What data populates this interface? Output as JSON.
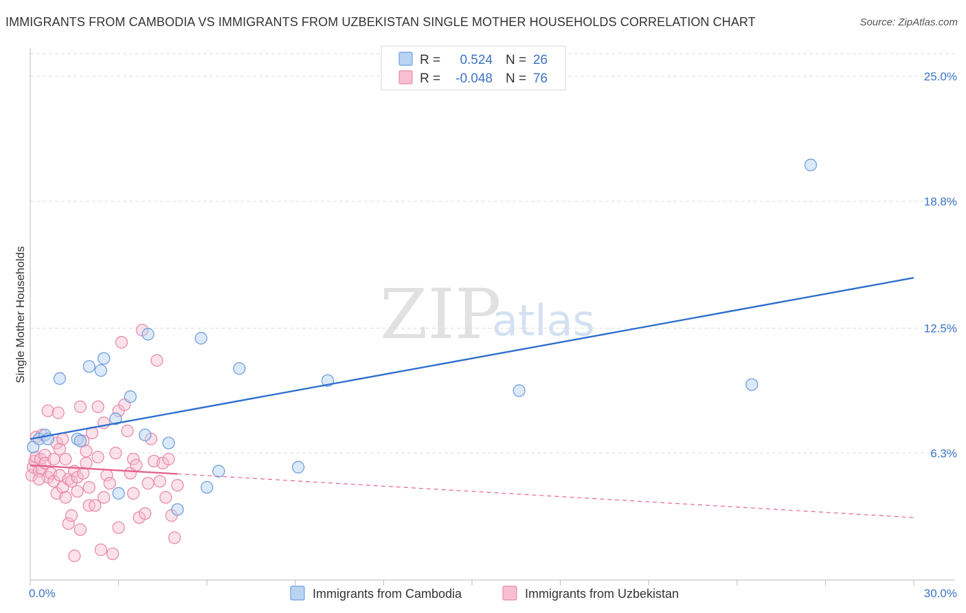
{
  "title": "IMMIGRANTS FROM CAMBODIA VS IMMIGRANTS FROM UZBEKISTAN SINGLE MOTHER HOUSEHOLDS CORRELATION CHART",
  "source": "Source: ZipAtlas.com",
  "watermark": {
    "part1": "ZIP",
    "part2": "atlas"
  },
  "legend": {
    "r_label": "R =",
    "n_label": "N =",
    "series": [
      {
        "r": "0.524",
        "n": "26"
      },
      {
        "r": "-0.048",
        "n": "76"
      }
    ]
  },
  "chart_data": {
    "type": "scatter",
    "title": "IMMIGRANTS FROM CAMBODIA VS IMMIGRANTS FROM UZBEKISTAN SINGLE MOTHER HOUSEHOLDS CORRELATION CHART",
    "xlabel": "",
    "ylabel": "Single Mother Households",
    "xlim": [
      0,
      30
    ],
    "ylim": [
      0,
      26.4
    ],
    "x_tick_labels": [
      "0.0%",
      "30.0%"
    ],
    "y_ticks": [
      6.3,
      12.5,
      18.8,
      25.0
    ],
    "y_tick_labels": [
      "6.3%",
      "12.5%",
      "18.8%",
      "25.0%"
    ],
    "colors": {
      "cambodia_fill": "#b9d3f3",
      "cambodia_stroke": "#6f9fdc",
      "cambodia_line": "#2f6fcc",
      "uzbekistan_fill": "#f7bfd1",
      "uzbekistan_stroke": "#e98bab",
      "uzbekistan_line": "#e36390",
      "grid": "#dddddd",
      "axis": "#bbbbbb"
    },
    "series": [
      {
        "name": "Immigrants from Cambodia",
        "r": 0.524,
        "n": 26,
        "trend": {
          "x": [
            0,
            30
          ],
          "y": [
            7.0,
            15.0
          ],
          "dashed_from": null
        },
        "points": [
          [
            0.1,
            6.6
          ],
          [
            0.3,
            7.0
          ],
          [
            0.5,
            7.2
          ],
          [
            0.6,
            7.0
          ],
          [
            1.0,
            10.0
          ],
          [
            1.6,
            7.0
          ],
          [
            1.7,
            6.9
          ],
          [
            2.0,
            10.6
          ],
          [
            2.4,
            10.4
          ],
          [
            2.5,
            11.0
          ],
          [
            2.9,
            8.0
          ],
          [
            3.0,
            4.3
          ],
          [
            3.4,
            9.1
          ],
          [
            3.9,
            7.2
          ],
          [
            4.0,
            12.2
          ],
          [
            4.7,
            6.8
          ],
          [
            5.0,
            3.5
          ],
          [
            5.8,
            12.0
          ],
          [
            6.0,
            4.6
          ],
          [
            6.4,
            5.4
          ],
          [
            7.1,
            10.5
          ],
          [
            9.1,
            5.6
          ],
          [
            10.1,
            9.9
          ],
          [
            16.6,
            9.4
          ],
          [
            24.5,
            9.7
          ],
          [
            26.5,
            20.6
          ]
        ]
      },
      {
        "name": "Immigrants from Uzbekistan",
        "r": -0.048,
        "n": 76,
        "trend": {
          "x": [
            0,
            30
          ],
          "y": [
            5.7,
            3.1
          ],
          "dashed_from": 5.0
        },
        "points": [
          [
            0.05,
            5.2
          ],
          [
            0.1,
            5.6
          ],
          [
            0.15,
            5.9
          ],
          [
            0.2,
            6.1
          ],
          [
            0.2,
            7.1
          ],
          [
            0.3,
            5.4
          ],
          [
            0.35,
            6.0
          ],
          [
            0.4,
            5.5
          ],
          [
            0.4,
            7.2
          ],
          [
            0.5,
            6.2
          ],
          [
            0.5,
            5.8
          ],
          [
            0.6,
            5.1
          ],
          [
            0.6,
            8.4
          ],
          [
            0.7,
            5.3
          ],
          [
            0.8,
            6.0
          ],
          [
            0.8,
            4.9
          ],
          [
            0.9,
            4.3
          ],
          [
            0.9,
            6.8
          ],
          [
            0.95,
            8.3
          ],
          [
            1.0,
            5.2
          ],
          [
            1.0,
            6.5
          ],
          [
            1.1,
            4.6
          ],
          [
            1.1,
            7.0
          ],
          [
            1.2,
            6.0
          ],
          [
            1.2,
            4.1
          ],
          [
            1.3,
            5.0
          ],
          [
            1.3,
            2.8
          ],
          [
            1.4,
            3.2
          ],
          [
            1.4,
            4.9
          ],
          [
            1.5,
            5.4
          ],
          [
            1.5,
            1.2
          ],
          [
            1.6,
            5.1
          ],
          [
            1.6,
            4.4
          ],
          [
            1.7,
            8.6
          ],
          [
            1.7,
            2.5
          ],
          [
            1.8,
            6.9
          ],
          [
            1.9,
            5.8
          ],
          [
            1.9,
            6.4
          ],
          [
            2.0,
            4.6
          ],
          [
            2.0,
            3.7
          ],
          [
            2.1,
            7.3
          ],
          [
            2.2,
            3.7
          ],
          [
            2.3,
            8.6
          ],
          [
            2.3,
            6.1
          ],
          [
            2.4,
            1.5
          ],
          [
            2.5,
            4.1
          ],
          [
            2.5,
            7.8
          ],
          [
            2.6,
            5.2
          ],
          [
            2.7,
            4.8
          ],
          [
            2.8,
            1.3
          ],
          [
            2.9,
            6.3
          ],
          [
            3.0,
            2.6
          ],
          [
            3.0,
            8.4
          ],
          [
            3.1,
            11.8
          ],
          [
            3.2,
            8.7
          ],
          [
            3.3,
            7.4
          ],
          [
            3.4,
            5.3
          ],
          [
            3.5,
            6.0
          ],
          [
            3.5,
            4.3
          ],
          [
            3.6,
            5.7
          ],
          [
            3.7,
            3.1
          ],
          [
            3.8,
            12.4
          ],
          [
            3.9,
            3.3
          ],
          [
            4.0,
            4.8
          ],
          [
            4.1,
            7.0
          ],
          [
            4.2,
            5.9
          ],
          [
            4.3,
            10.9
          ],
          [
            4.4,
            4.9
          ],
          [
            4.5,
            5.8
          ],
          [
            4.6,
            4.1
          ],
          [
            4.7,
            6.0
          ],
          [
            4.8,
            3.2
          ],
          [
            4.9,
            2.1
          ],
          [
            5.0,
            4.7
          ],
          [
            0.3,
            5.0
          ],
          [
            1.8,
            5.3
          ]
        ]
      }
    ],
    "legend_position": "top-center"
  },
  "bottom_legend": [
    "Immigrants from Cambodia",
    "Immigrants from Uzbekistan"
  ]
}
